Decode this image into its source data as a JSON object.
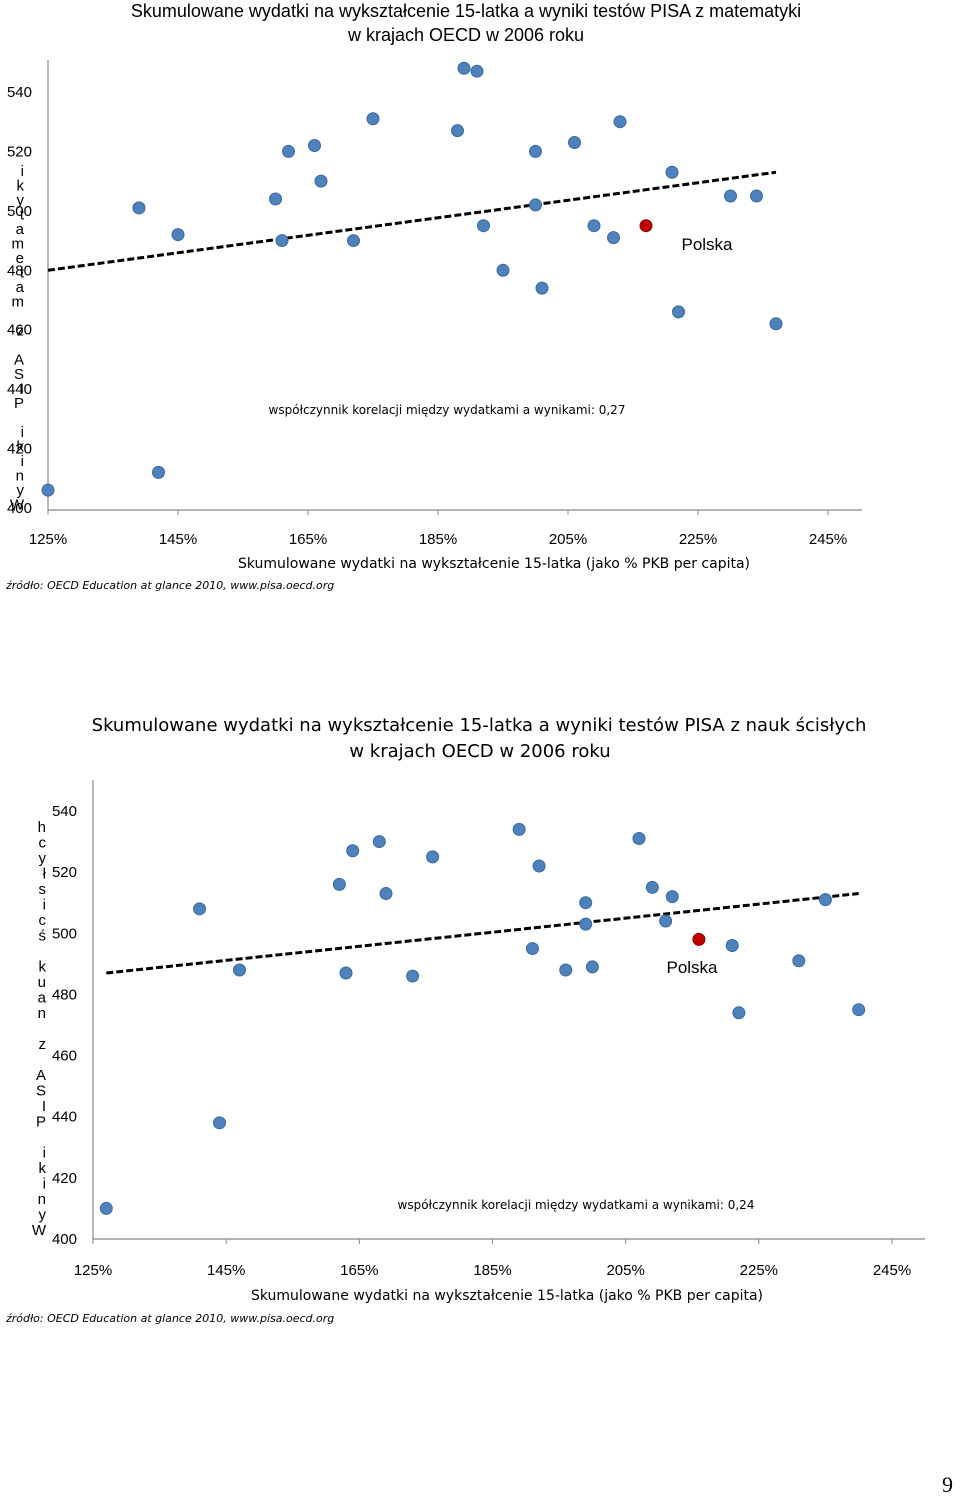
{
  "page_number": "9",
  "chart_data": [
    {
      "type": "scatter",
      "title_line1": "Skumulowane wydatki na wykształcenie 15-latka a wyniki testów PISA z matematyki",
      "title_line2": "w krajach OECD w 2006 roku",
      "xlabel": "Skumulowane wydatki na wykształcenie 15-latka (jako % PKB per capita)",
      "ylabel": "Wyniki PISA z matematyki",
      "xticks": [
        "125%",
        "145%",
        "165%",
        "185%",
        "205%",
        "225%",
        "245%"
      ],
      "yticks": [
        "400",
        "420",
        "440",
        "460",
        "480",
        "500",
        "520",
        "540"
      ],
      "xlim": [
        125,
        245
      ],
      "ylim": [
        400,
        540
      ],
      "correlation_note": "współczynnik korelacji między wydatkami a wynikami: 0,27",
      "highlight_label": "Polska",
      "source": "źródło: OECD Education at glance 2010, www.pisa.oecd.org",
      "trend": {
        "x": [
          125,
          237
        ],
        "y": [
          480,
          513
        ],
        "style": "dashed"
      },
      "point_color": "#4f81bd",
      "highlight_color": "#c00000",
      "points": [
        {
          "x": 125,
          "y": 406
        },
        {
          "x": 139,
          "y": 501
        },
        {
          "x": 142,
          "y": 412
        },
        {
          "x": 145,
          "y": 492
        },
        {
          "x": 160,
          "y": 504
        },
        {
          "x": 161,
          "y": 490
        },
        {
          "x": 162,
          "y": 520
        },
        {
          "x": 166,
          "y": 522
        },
        {
          "x": 167,
          "y": 510
        },
        {
          "x": 172,
          "y": 490
        },
        {
          "x": 175,
          "y": 531
        },
        {
          "x": 188,
          "y": 527
        },
        {
          "x": 189,
          "y": 548
        },
        {
          "x": 191,
          "y": 547
        },
        {
          "x": 192,
          "y": 495
        },
        {
          "x": 195,
          "y": 480
        },
        {
          "x": 200,
          "y": 520
        },
        {
          "x": 200,
          "y": 502
        },
        {
          "x": 201,
          "y": 474
        },
        {
          "x": 206,
          "y": 523
        },
        {
          "x": 209,
          "y": 495
        },
        {
          "x": 212,
          "y": 491
        },
        {
          "x": 213,
          "y": 530
        },
        {
          "x": 221,
          "y": 513
        },
        {
          "x": 222,
          "y": 466
        },
        {
          "x": 230,
          "y": 505
        },
        {
          "x": 234,
          "y": 505
        },
        {
          "x": 237,
          "y": 462
        },
        {
          "x": 217,
          "y": 495,
          "highlight": true
        }
      ]
    },
    {
      "type": "scatter",
      "title_line1": "Skumulowane wydatki na wykształcenie 15-latka a wyniki testów PISA z nauk ścisłych",
      "title_line2": "w krajach OECD w 2006 roku",
      "xlabel": "Skumulowane wydatki na wykształcenie 15-latka (jako % PKB per capita)",
      "ylabel": "Wyniki PISA z nauk ścisłych",
      "xticks": [
        "125%",
        "145%",
        "165%",
        "185%",
        "205%",
        "225%",
        "245%"
      ],
      "yticks": [
        "400",
        "420",
        "440",
        "460",
        "480",
        "500",
        "520",
        "540"
      ],
      "xlim": [
        125,
        245
      ],
      "ylim": [
        400,
        540
      ],
      "correlation_note": "współczynnik korelacji między wydatkami a wynikami: 0,24",
      "highlight_label": "Polska",
      "source": "źródło: OECD Education at glance 2010, www.pisa.oecd.org",
      "trend": {
        "x": [
          127,
          240
        ],
        "y": [
          487,
          513
        ],
        "style": "dashed"
      },
      "point_color": "#4f81bd",
      "highlight_color": "#c00000",
      "points": [
        {
          "x": 127,
          "y": 410
        },
        {
          "x": 141,
          "y": 508
        },
        {
          "x": 144,
          "y": 438
        },
        {
          "x": 147,
          "y": 488
        },
        {
          "x": 162,
          "y": 516
        },
        {
          "x": 163,
          "y": 487
        },
        {
          "x": 164,
          "y": 527
        },
        {
          "x": 168,
          "y": 530
        },
        {
          "x": 169,
          "y": 513
        },
        {
          "x": 173,
          "y": 486
        },
        {
          "x": 176,
          "y": 525
        },
        {
          "x": 189,
          "y": 534
        },
        {
          "x": 191,
          "y": 495
        },
        {
          "x": 192,
          "y": 522
        },
        {
          "x": 196,
          "y": 488
        },
        {
          "x": 199,
          "y": 510
        },
        {
          "x": 199,
          "y": 503
        },
        {
          "x": 200,
          "y": 489
        },
        {
          "x": 207,
          "y": 531
        },
        {
          "x": 209,
          "y": 515
        },
        {
          "x": 211,
          "y": 504
        },
        {
          "x": 212,
          "y": 512
        },
        {
          "x": 221,
          "y": 496
        },
        {
          "x": 222,
          "y": 474
        },
        {
          "x": 231,
          "y": 491
        },
        {
          "x": 235,
          "y": 511
        },
        {
          "x": 240,
          "y": 475
        },
        {
          "x": 216,
          "y": 498,
          "highlight": true
        }
      ]
    }
  ]
}
